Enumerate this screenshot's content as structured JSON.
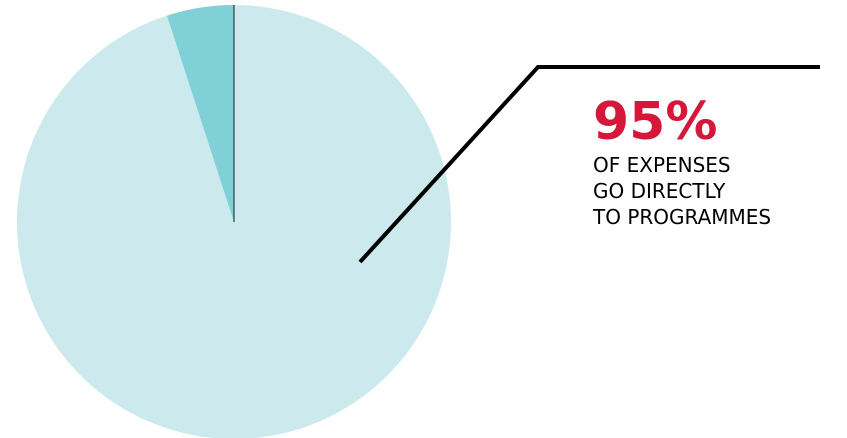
{
  "chart_data": {
    "type": "pie",
    "slices": [
      {
        "value": 95,
        "color": "#cceaed"
      },
      {
        "value": 5,
        "color": "#80d0d8"
      }
    ],
    "divider_color": "#1a1a1a",
    "leader_line_color": "#000000"
  },
  "callout": {
    "value": "95%",
    "value_color": "#d5173a",
    "lines": [
      "OF EXPENSES",
      "GO DIRECTLY",
      "TO PROGRAMMES"
    ]
  }
}
